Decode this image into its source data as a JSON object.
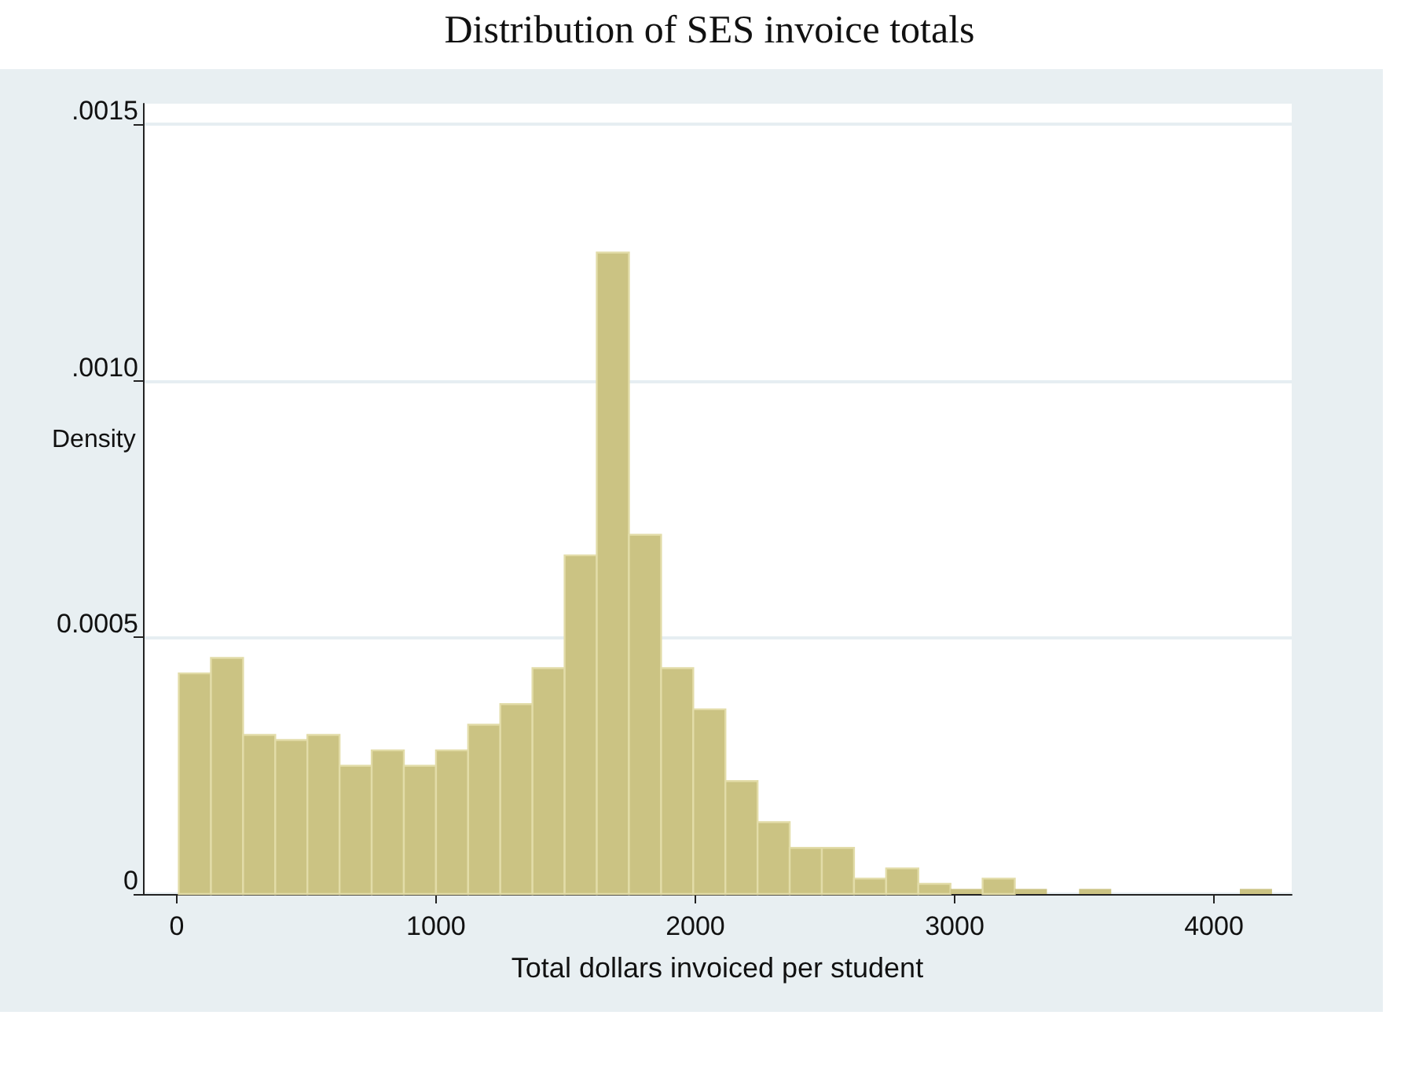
{
  "chart_data": {
    "type": "histogram",
    "title": "Distribution of SES invoice totals",
    "xlabel": "Total dollars invoiced per student",
    "ylabel": "Density",
    "bins": [
      8,
      132,
      256,
      380,
      504,
      628,
      752,
      876,
      1000,
      1124,
      1248,
      1372,
      1496,
      1620,
      1744,
      1868,
      1992,
      2116,
      2240,
      2364,
      2488,
      2612,
      2736,
      2860,
      2984,
      3108,
      3232,
      3356,
      3480,
      3604,
      3728,
      3852,
      3976,
      4100,
      4224
    ],
    "values": [
      0.00043,
      0.00046,
      0.00031,
      0.0003,
      0.00031,
      0.00025,
      0.00028,
      0.00025,
      0.00028,
      0.00033,
      0.00037,
      0.00044,
      0.00066,
      0.00125,
      0.0007,
      0.00044,
      0.00036,
      0.00022,
      0.00014,
      9e-05,
      9e-05,
      3e-05,
      5e-05,
      2e-05,
      1e-05,
      3e-05,
      1e-05,
      0,
      1e-05,
      0,
      0,
      0,
      0,
      1e-05
    ],
    "color": "#cbc383",
    "xlim": [
      -130,
      4300
    ],
    "ylim": [
      0,
      0.00154
    ],
    "xticks": [
      0,
      1000,
      2000,
      3000,
      4000
    ],
    "yticks": [
      {
        "value": 0,
        "label": "0"
      },
      {
        "value": 0.0005,
        "label": "0.0005"
      },
      {
        "value": 0.001,
        "label": ".0010"
      },
      {
        "value": 0.0015,
        "label": ".0015"
      }
    ],
    "grid": "y"
  }
}
